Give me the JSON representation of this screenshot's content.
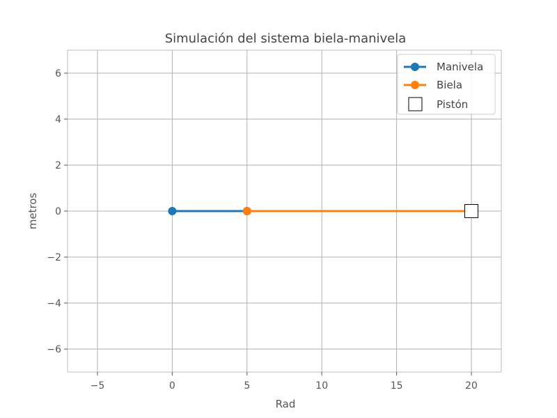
{
  "chart_data": {
    "type": "line",
    "title": "Simulación del sistema biela-manivela",
    "xlabel": "Rad",
    "ylabel": "metros",
    "xlim": [
      -7,
      22
    ],
    "ylim": [
      -7,
      7
    ],
    "xticks": [
      -5,
      0,
      5,
      10,
      15,
      20
    ],
    "xtick_labels": [
      "−5",
      "0",
      "5",
      "10",
      "15",
      "20"
    ],
    "yticks": [
      -6,
      -4,
      -2,
      0,
      2,
      4,
      6
    ],
    "ytick_labels": [
      "−6",
      "−4",
      "−2",
      "0",
      "2",
      "4",
      "6"
    ],
    "grid": true,
    "legend_position": "top-right",
    "series": [
      {
        "name": "Manivela",
        "color": "#1f77b4",
        "marker": "circle",
        "x": [
          0,
          5
        ],
        "y": [
          0,
          0
        ]
      },
      {
        "name": "Biela",
        "color": "#ff7f0e",
        "marker": "circle",
        "x": [
          5,
          20
        ],
        "y": [
          0,
          0
        ]
      },
      {
        "name": "Pistón",
        "color": "#000000",
        "marker": "square",
        "x": [
          20
        ],
        "y": [
          0
        ]
      }
    ]
  }
}
